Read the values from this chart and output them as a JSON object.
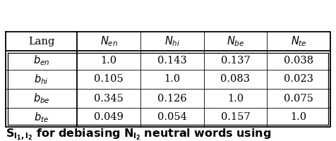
{
  "col_headers": [
    "Lang",
    "$N_{en}$",
    "$N_{hi}$",
    "$N_{be}$",
    "$N_{te}$"
  ],
  "row_labels": [
    "$b_{en}$",
    "$b_{hi}$",
    "$b_{be}$",
    "$b_{te}$"
  ],
  "table_data": [
    [
      "1.0",
      "0.143",
      "0.137",
      "0.038"
    ],
    [
      "0.105",
      "1.0",
      "0.083",
      "0.023"
    ],
    [
      "0.345",
      "0.126",
      "1.0",
      "0.075"
    ],
    [
      "0.049",
      "0.054",
      "0.157",
      "1.0"
    ]
  ],
  "caption_parts": [
    {
      "text": "$S_{l_1,l_2}$",
      "bold": true
    },
    {
      "text": " ",
      "bold": false
    },
    {
      "text": "for debiasing",
      "bold": true
    },
    {
      "text": " ",
      "bold": false
    },
    {
      "text": "$N_{l_2}$",
      "bold": true
    },
    {
      "text": " ",
      "bold": false
    },
    {
      "text": "neutral words using",
      "bold": true
    }
  ],
  "background_color": "#ffffff",
  "text_color": "#000000",
  "fontsize": 10.5,
  "caption_fontsize": 11.5
}
